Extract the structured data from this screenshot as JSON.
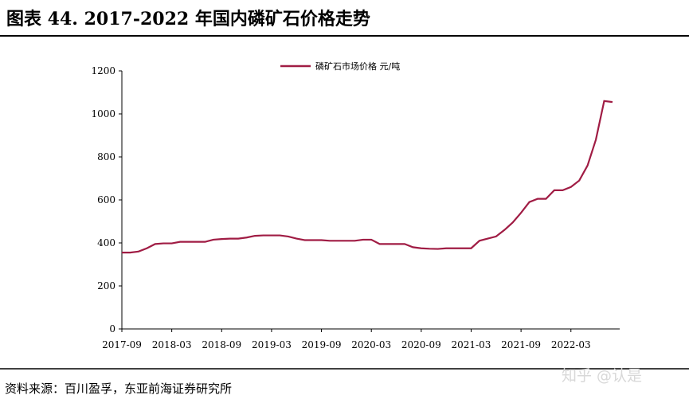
{
  "chart_data": {
    "type": "line",
    "title": "图表 44. 2017-2022 年国内磷矿石价格走势",
    "source": "资料来源：百川盈孚，东亚前海证券研究所",
    "watermark": "知乎 @认是",
    "categories": [
      "2017-09",
      "2017-10",
      "2017-11",
      "2017-12",
      "2018-01",
      "2018-02",
      "2018-03",
      "2018-04",
      "2018-05",
      "2018-06",
      "2018-07",
      "2018-08",
      "2018-09",
      "2018-10",
      "2018-11",
      "2018-12",
      "2019-01",
      "2019-02",
      "2019-03",
      "2019-04",
      "2019-05",
      "2019-06",
      "2019-07",
      "2019-08",
      "2019-09",
      "2019-10",
      "2019-11",
      "2019-12",
      "2020-01",
      "2020-02",
      "2020-03",
      "2020-04",
      "2020-05",
      "2020-06",
      "2020-07",
      "2020-08",
      "2020-09",
      "2020-10",
      "2020-11",
      "2020-12",
      "2021-01",
      "2021-02",
      "2021-03",
      "2021-04",
      "2021-05",
      "2021-06",
      "2021-07",
      "2021-08",
      "2021-09",
      "2021-10",
      "2021-11",
      "2021-12",
      "2022-01",
      "2022-02",
      "2022-03",
      "2022-04",
      "2022-05",
      "2022-06",
      "2022-07",
      "2022-08"
    ],
    "series": [
      {
        "name": "磷矿石市场价格  元/吨",
        "color": "#a01c44",
        "values": [
          355,
          355,
          360,
          375,
          395,
          398,
          398,
          405,
          405,
          405,
          405,
          415,
          418,
          420,
          420,
          425,
          433,
          435,
          435,
          435,
          430,
          420,
          413,
          413,
          413,
          410,
          410,
          410,
          410,
          415,
          415,
          395,
          395,
          395,
          395,
          380,
          375,
          373,
          372,
          375,
          375,
          375,
          375,
          410,
          420,
          430,
          460,
          495,
          540,
          590,
          605,
          605,
          645,
          645,
          660,
          690,
          760,
          880,
          1060,
          1055
        ]
      }
    ],
    "ylim": [
      0,
      1200
    ],
    "yticks": [
      0,
      200,
      400,
      600,
      800,
      1000,
      1200
    ],
    "grid": false
  }
}
